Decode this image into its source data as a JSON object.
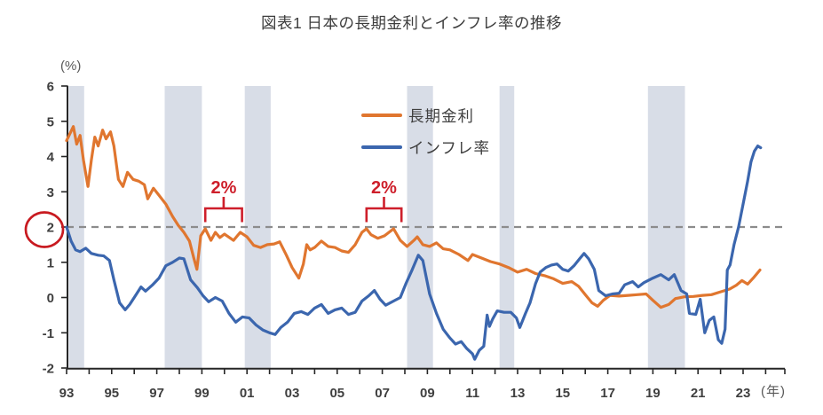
{
  "title": "図表1 日本の長期金利とインフレ率の推移",
  "chart_data": {
    "type": "line",
    "title": "図表1 日本の長期金利とインフレ率の推移",
    "x_axis": {
      "unit_label": "(年)",
      "tick_labels": [
        "93",
        "95",
        "97",
        "99",
        "01",
        "03",
        "05",
        "07",
        "09",
        "11",
        "13",
        "15",
        "17",
        "19",
        "21",
        "23"
      ],
      "start_year": 1993,
      "label_step_years": 2,
      "minor_tick_step_years": 1,
      "axis_end_year": 2024.85
    },
    "y_axis": {
      "unit_label": "(%)",
      "min": -2,
      "max": 6,
      "tick_step": 1,
      "circled_tick": 2
    },
    "reference_line": {
      "value": 2,
      "style": "dashed",
      "color": "#8c8c8c"
    },
    "recession_bands": {
      "color": "#d8dde7",
      "ranges": [
        [
          1993.1,
          1993.78
        ],
        [
          1997.35,
          1999.0
        ],
        [
          2000.9,
          2002.05
        ],
        [
          2008.1,
          2009.25
        ],
        [
          2012.2,
          2012.85
        ],
        [
          2018.78,
          2020.42
        ]
      ]
    },
    "annotations": [
      {
        "type": "bracket",
        "label": "2%",
        "from": 1999.15,
        "to": 2000.78,
        "color": "#ce1f2b"
      },
      {
        "type": "bracket",
        "label": "2%",
        "from": 2006.3,
        "to": 2007.85,
        "color": "#ce1f2b"
      }
    ],
    "circled_tick_color": "#c81a20",
    "legend": {
      "position": "top-center-right",
      "items": [
        "長期金利",
        "インフレ率"
      ]
    },
    "series": [
      {
        "name": "長期金利",
        "color": "#e0762f",
        "points": [
          [
            1993.0,
            4.45
          ],
          [
            1993.15,
            4.65
          ],
          [
            1993.3,
            4.85
          ],
          [
            1993.45,
            4.35
          ],
          [
            1993.6,
            4.6
          ],
          [
            1993.75,
            3.9
          ],
          [
            1993.95,
            3.15
          ],
          [
            1994.1,
            3.9
          ],
          [
            1994.25,
            4.55
          ],
          [
            1994.4,
            4.3
          ],
          [
            1994.6,
            4.75
          ],
          [
            1994.75,
            4.5
          ],
          [
            1994.95,
            4.7
          ],
          [
            1995.1,
            4.3
          ],
          [
            1995.3,
            3.35
          ],
          [
            1995.5,
            3.15
          ],
          [
            1995.7,
            3.55
          ],
          [
            1995.95,
            3.35
          ],
          [
            1996.2,
            3.3
          ],
          [
            1996.45,
            3.2
          ],
          [
            1996.6,
            2.8
          ],
          [
            1996.85,
            3.1
          ],
          [
            1997.1,
            2.9
          ],
          [
            1997.4,
            2.65
          ],
          [
            1997.7,
            2.3
          ],
          [
            1997.95,
            2.05
          ],
          [
            1998.2,
            1.85
          ],
          [
            1998.45,
            1.6
          ],
          [
            1998.65,
            1.1
          ],
          [
            1998.78,
            0.8
          ],
          [
            1998.95,
            1.75
          ],
          [
            1999.15,
            1.95
          ],
          [
            1999.4,
            1.62
          ],
          [
            1999.6,
            1.85
          ],
          [
            1999.8,
            1.7
          ],
          [
            2000.0,
            1.8
          ],
          [
            2000.4,
            1.62
          ],
          [
            2000.7,
            1.85
          ],
          [
            2001.0,
            1.72
          ],
          [
            2001.3,
            1.48
          ],
          [
            2001.6,
            1.42
          ],
          [
            2001.9,
            1.5
          ],
          [
            2002.2,
            1.52
          ],
          [
            2002.45,
            1.58
          ],
          [
            2002.75,
            1.2
          ],
          [
            2003.0,
            0.85
          ],
          [
            2003.3,
            0.55
          ],
          [
            2003.5,
            0.95
          ],
          [
            2003.65,
            1.5
          ],
          [
            2003.8,
            1.35
          ],
          [
            2004.0,
            1.42
          ],
          [
            2004.3,
            1.6
          ],
          [
            2004.6,
            1.45
          ],
          [
            2004.9,
            1.42
          ],
          [
            2005.2,
            1.32
          ],
          [
            2005.5,
            1.28
          ],
          [
            2005.8,
            1.5
          ],
          [
            2006.1,
            1.85
          ],
          [
            2006.3,
            1.95
          ],
          [
            2006.5,
            1.78
          ],
          [
            2006.8,
            1.68
          ],
          [
            2007.1,
            1.75
          ],
          [
            2007.5,
            1.95
          ],
          [
            2007.8,
            1.62
          ],
          [
            2008.1,
            1.45
          ],
          [
            2008.4,
            1.62
          ],
          [
            2008.55,
            1.72
          ],
          [
            2008.8,
            1.5
          ],
          [
            2009.1,
            1.45
          ],
          [
            2009.4,
            1.55
          ],
          [
            2009.7,
            1.38
          ],
          [
            2010.0,
            1.35
          ],
          [
            2010.4,
            1.22
          ],
          [
            2010.8,
            1.05
          ],
          [
            2011.0,
            1.22
          ],
          [
            2011.4,
            1.12
          ],
          [
            2011.8,
            1.02
          ],
          [
            2012.2,
            0.95
          ],
          [
            2012.6,
            0.85
          ],
          [
            2013.0,
            0.72
          ],
          [
            2013.4,
            0.8
          ],
          [
            2013.8,
            0.68
          ],
          [
            2014.2,
            0.62
          ],
          [
            2014.6,
            0.53
          ],
          [
            2015.0,
            0.4
          ],
          [
            2015.4,
            0.45
          ],
          [
            2015.7,
            0.32
          ],
          [
            2016.0,
            0.08
          ],
          [
            2016.3,
            -0.15
          ],
          [
            2016.55,
            -0.25
          ],
          [
            2016.8,
            -0.08
          ],
          [
            2017.1,
            0.06
          ],
          [
            2017.5,
            0.04
          ],
          [
            2017.9,
            0.06
          ],
          [
            2018.3,
            0.08
          ],
          [
            2018.7,
            0.1
          ],
          [
            2019.0,
            -0.08
          ],
          [
            2019.35,
            -0.28
          ],
          [
            2019.7,
            -0.2
          ],
          [
            2020.0,
            -0.03
          ],
          [
            2020.4,
            0.02
          ],
          [
            2020.8,
            0.03
          ],
          [
            2021.2,
            0.06
          ],
          [
            2021.6,
            0.08
          ],
          [
            2022.0,
            0.16
          ],
          [
            2022.4,
            0.24
          ],
          [
            2022.7,
            0.35
          ],
          [
            2022.95,
            0.48
          ],
          [
            2023.2,
            0.38
          ],
          [
            2023.45,
            0.55
          ],
          [
            2023.75,
            0.78
          ]
        ]
      },
      {
        "name": "インフレ率",
        "color": "#3b66ae",
        "points": [
          [
            1993.0,
            2.0
          ],
          [
            1993.2,
            1.6
          ],
          [
            1993.4,
            1.35
          ],
          [
            1993.6,
            1.3
          ],
          [
            1993.85,
            1.4
          ],
          [
            1994.1,
            1.25
          ],
          [
            1994.4,
            1.2
          ],
          [
            1994.65,
            1.18
          ],
          [
            1994.9,
            1.05
          ],
          [
            1995.1,
            0.5
          ],
          [
            1995.35,
            -0.15
          ],
          [
            1995.6,
            -0.35
          ],
          [
            1995.8,
            -0.2
          ],
          [
            1996.05,
            0.05
          ],
          [
            1996.3,
            0.3
          ],
          [
            1996.5,
            0.18
          ],
          [
            1996.8,
            0.35
          ],
          [
            1997.1,
            0.55
          ],
          [
            1997.4,
            0.9
          ],
          [
            1997.7,
            1.0
          ],
          [
            1998.0,
            1.12
          ],
          [
            1998.2,
            1.1
          ],
          [
            1998.5,
            0.5
          ],
          [
            1998.8,
            0.28
          ],
          [
            1999.05,
            0.05
          ],
          [
            1999.3,
            -0.12
          ],
          [
            1999.6,
            0.0
          ],
          [
            1999.9,
            -0.1
          ],
          [
            2000.2,
            -0.45
          ],
          [
            2000.5,
            -0.7
          ],
          [
            2000.8,
            -0.55
          ],
          [
            2001.1,
            -0.58
          ],
          [
            2001.4,
            -0.78
          ],
          [
            2001.7,
            -0.92
          ],
          [
            2002.0,
            -1.0
          ],
          [
            2002.25,
            -1.05
          ],
          [
            2002.5,
            -0.85
          ],
          [
            2002.8,
            -0.7
          ],
          [
            2003.1,
            -0.45
          ],
          [
            2003.4,
            -0.4
          ],
          [
            2003.7,
            -0.48
          ],
          [
            2004.0,
            -0.3
          ],
          [
            2004.3,
            -0.2
          ],
          [
            2004.6,
            -0.45
          ],
          [
            2004.9,
            -0.35
          ],
          [
            2005.2,
            -0.3
          ],
          [
            2005.5,
            -0.48
          ],
          [
            2005.8,
            -0.42
          ],
          [
            2006.1,
            -0.1
          ],
          [
            2006.4,
            0.05
          ],
          [
            2006.65,
            0.2
          ],
          [
            2006.9,
            -0.05
          ],
          [
            2007.15,
            -0.22
          ],
          [
            2007.5,
            -0.1
          ],
          [
            2007.8,
            0.0
          ],
          [
            2008.05,
            0.4
          ],
          [
            2008.3,
            0.75
          ],
          [
            2008.6,
            1.2
          ],
          [
            2008.8,
            1.05
          ],
          [
            2009.1,
            0.1
          ],
          [
            2009.4,
            -0.45
          ],
          [
            2009.7,
            -0.9
          ],
          [
            2010.0,
            -1.15
          ],
          [
            2010.25,
            -1.32
          ],
          [
            2010.5,
            -1.25
          ],
          [
            2010.75,
            -1.45
          ],
          [
            2011.0,
            -1.6
          ],
          [
            2011.1,
            -1.75
          ],
          [
            2011.3,
            -1.5
          ],
          [
            2011.5,
            -1.38
          ],
          [
            2011.65,
            -0.5
          ],
          [
            2011.75,
            -0.82
          ],
          [
            2011.9,
            -0.6
          ],
          [
            2012.1,
            -0.38
          ],
          [
            2012.4,
            -0.42
          ],
          [
            2012.7,
            -0.42
          ],
          [
            2012.95,
            -0.58
          ],
          [
            2013.1,
            -0.85
          ],
          [
            2013.35,
            -0.45
          ],
          [
            2013.55,
            -0.15
          ],
          [
            2013.8,
            0.4
          ],
          [
            2014.0,
            0.72
          ],
          [
            2014.25,
            0.85
          ],
          [
            2014.5,
            0.92
          ],
          [
            2014.75,
            0.95
          ],
          [
            2015.0,
            0.8
          ],
          [
            2015.25,
            0.75
          ],
          [
            2015.5,
            0.9
          ],
          [
            2015.75,
            1.1
          ],
          [
            2015.95,
            1.25
          ],
          [
            2016.15,
            1.1
          ],
          [
            2016.4,
            0.8
          ],
          [
            2016.6,
            0.2
          ],
          [
            2016.9,
            0.05
          ],
          [
            2017.2,
            0.1
          ],
          [
            2017.5,
            0.12
          ],
          [
            2017.75,
            0.36
          ],
          [
            2018.1,
            0.45
          ],
          [
            2018.35,
            0.3
          ],
          [
            2018.6,
            0.42
          ],
          [
            2019.0,
            0.55
          ],
          [
            2019.35,
            0.65
          ],
          [
            2019.7,
            0.5
          ],
          [
            2019.95,
            0.65
          ],
          [
            2020.25,
            0.2
          ],
          [
            2020.5,
            0.1
          ],
          [
            2020.62,
            -0.45
          ],
          [
            2020.9,
            -0.48
          ],
          [
            2021.1,
            -0.05
          ],
          [
            2021.3,
            -1.0
          ],
          [
            2021.5,
            -0.65
          ],
          [
            2021.7,
            -0.55
          ],
          [
            2021.9,
            -1.2
          ],
          [
            2022.05,
            -1.3
          ],
          [
            2022.2,
            -0.9
          ],
          [
            2022.3,
            0.78
          ],
          [
            2022.42,
            0.92
          ],
          [
            2022.6,
            1.5
          ],
          [
            2022.8,
            2.0
          ],
          [
            2023.0,
            2.65
          ],
          [
            2023.2,
            3.3
          ],
          [
            2023.35,
            3.85
          ],
          [
            2023.5,
            4.15
          ],
          [
            2023.65,
            4.3
          ],
          [
            2023.78,
            4.25
          ]
        ]
      }
    ]
  }
}
